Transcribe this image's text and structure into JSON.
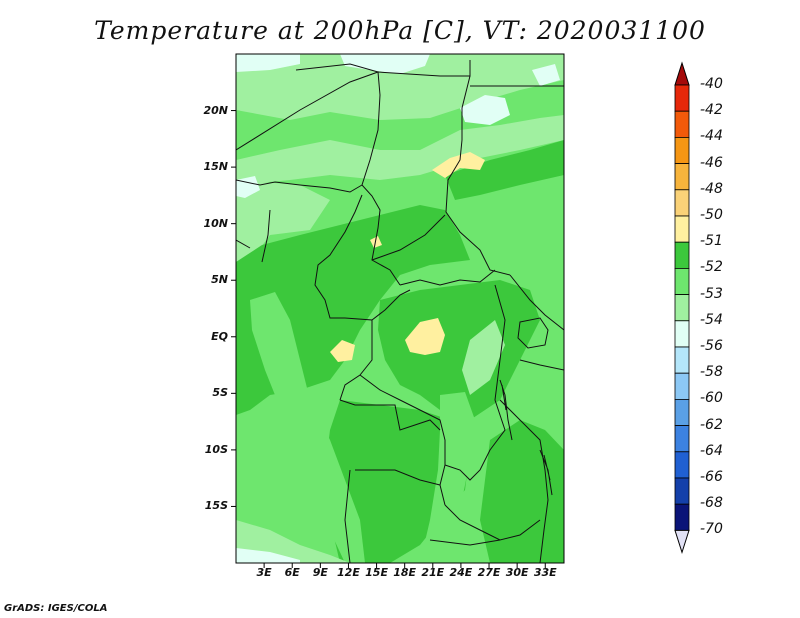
{
  "title": "Temperature at 200hPa [C], VT: 2020031100",
  "footer": "GrADS: IGES/COLA",
  "map": {
    "lon_range": [
      0,
      35
    ],
    "lat_range": [
      -20,
      25
    ],
    "lat_ticks": [
      {
        "lat": 20,
        "label": "20N"
      },
      {
        "lat": 15,
        "label": "15N"
      },
      {
        "lat": 10,
        "label": "10N"
      },
      {
        "lat": 5,
        "label": "5N"
      },
      {
        "lat": 0,
        "label": "EQ"
      },
      {
        "lat": -5,
        "label": "5S"
      },
      {
        "lat": -10,
        "label": "10S"
      },
      {
        "lat": -15,
        "label": "15S"
      }
    ],
    "lon_ticks": [
      {
        "lon": 3,
        "label": "3E"
      },
      {
        "lon": 6,
        "label": "6E"
      },
      {
        "lon": 9,
        "label": "9E"
      },
      {
        "lon": 12,
        "label": "12E"
      },
      {
        "lon": 15,
        "label": "15E"
      },
      {
        "lon": 18,
        "label": "18E"
      },
      {
        "lon": 21,
        "label": "21E"
      },
      {
        "lon": 24,
        "label": "24E"
      },
      {
        "lon": 27,
        "label": "27E"
      },
      {
        "lon": 30,
        "label": "30E"
      },
      {
        "lon": 33,
        "label": "33E"
      }
    ]
  },
  "colorbar": {
    "levels": [
      {
        "label": "-40",
        "color": "#a50a0a"
      },
      {
        "label": "-42",
        "color": "#e6280a"
      },
      {
        "label": "-44",
        "color": "#f25a0a"
      },
      {
        "label": "-46",
        "color": "#f59614"
      },
      {
        "label": "-48",
        "color": "#f7b43c"
      },
      {
        "label": "-50",
        "color": "#fad278"
      },
      {
        "label": "-51",
        "color": "#fff0a0"
      },
      {
        "label": "-52",
        "color": "#3cc83c"
      },
      {
        "label": "-53",
        "color": "#6ee66e"
      },
      {
        "label": "-54",
        "color": "#a0f0a0"
      },
      {
        "label": "-56",
        "color": "#e1fff5"
      },
      {
        "label": "-58",
        "color": "#b4e6fa"
      },
      {
        "label": "-60",
        "color": "#8cc8f5"
      },
      {
        "label": "-62",
        "color": "#5aa0e6"
      },
      {
        "label": "-64",
        "color": "#3c82e1"
      },
      {
        "label": "-66",
        "color": "#2060d2"
      },
      {
        "label": "-68",
        "color": "#1440aa"
      },
      {
        "label": "-70",
        "color": "#0a1478"
      }
    ],
    "under_color": "#e1e1f5"
  }
}
